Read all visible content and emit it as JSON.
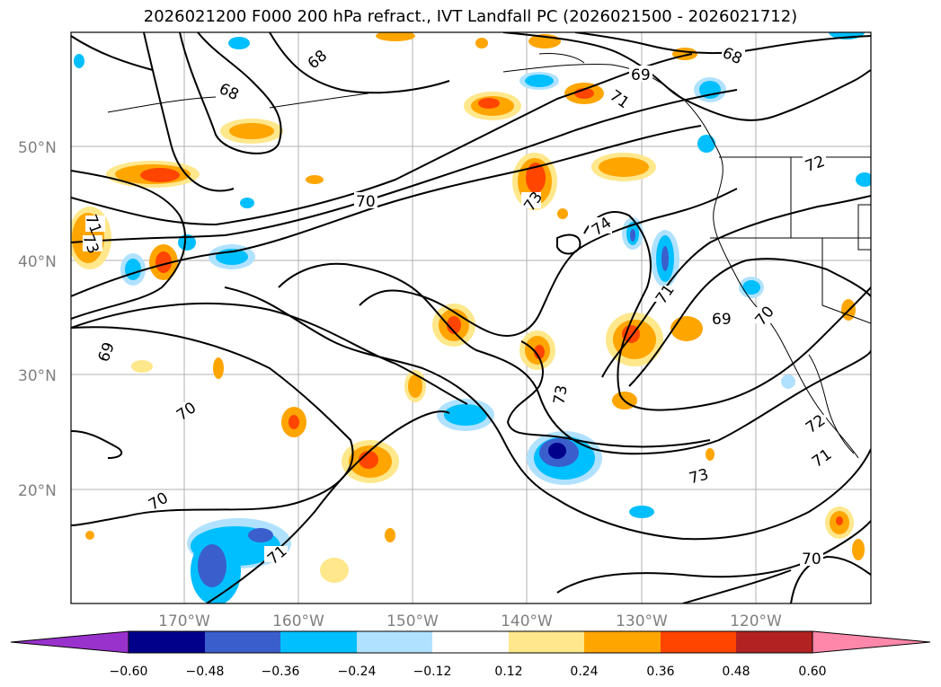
{
  "title": "2026021200 F000 200 hPa refract., IVT Landfall PC (2026021500 - 2026021712)",
  "map": {
    "lat_ticks": [
      "50°N",
      "40°N",
      "30°N",
      "20°N"
    ],
    "lon_ticks": [
      "170°W",
      "160°W",
      "150°W",
      "140°W",
      "130°W",
      "120°W"
    ],
    "gridlines": true
  },
  "contour_labels": [
    "68",
    "68",
    "68",
    "69",
    "70",
    "71",
    "72",
    "73",
    "74",
    "71",
    "73",
    "69",
    "70",
    "69",
    "70",
    "70",
    "71",
    "73",
    "72",
    "71",
    "70",
    "71",
    "73"
  ],
  "colorbar": {
    "extend": "both",
    "colors": [
      "#9932cc",
      "#00008b",
      "#3a5fcd",
      "#00bfff",
      "#b0e2ff",
      "#ffffff",
      "#ffe78b",
      "#ffa500",
      "#ff4500",
      "#b22222",
      "#ff88aa"
    ],
    "tick_labels": [
      "−0.60",
      "−0.48",
      "−0.36",
      "−0.24",
      "−0.12",
      "0.12",
      "0.24",
      "0.36",
      "0.48",
      "0.60"
    ]
  }
}
